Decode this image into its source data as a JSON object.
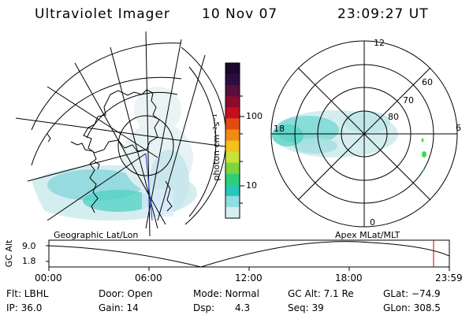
{
  "header": {
    "instrument": "Ultraviolet Imager",
    "date": "10 Nov 07",
    "time": "23:09:27 UT"
  },
  "colorbar": {
    "unit_label": "photon cm⁻²s⁻¹",
    "ticks": [
      "100",
      "10"
    ],
    "colors": [
      "#1b0a2b",
      "#2c0e45",
      "#5a0e3b",
      "#8c0b2f",
      "#c4101a",
      "#e34a12",
      "#f28a14",
      "#f5c21b",
      "#c9e13a",
      "#7ad63a",
      "#2fcf7a",
      "#25c9b6",
      "#8fdde0",
      "#d6eef0"
    ]
  },
  "polar_plot": {
    "lat_labels": [
      "60",
      "70",
      "80"
    ],
    "mlt_labels": {
      "top": "12",
      "left": "18",
      "right": "6",
      "bottom": "0"
    }
  },
  "timeline": {
    "y_axis_label": "GC Alt",
    "y_ticks": [
      "9.0",
      "1.8"
    ],
    "left_caption": "Geographic Lat/Lon",
    "right_caption": "Apex  MLat/MLT",
    "x_ticks": [
      "00:00",
      "06:00",
      "12:00",
      "18:00",
      "23:59"
    ],
    "marker_color": "#cc0000"
  },
  "info_row1": {
    "flt": "Flt: LBHL",
    "door": "Door: Open",
    "mode": "Mode: Normal",
    "gcalt": "GC Alt: 7.1 Re",
    "glat": "GLat: −74.9"
  },
  "info_row2": {
    "ip": "IP: 36.0",
    "gain": "Gain: 14",
    "dsp_label": "Dsp:",
    "dsp_value": "4.3",
    "seq": "Seq: 39",
    "glon": "GLon: 308.5"
  }
}
